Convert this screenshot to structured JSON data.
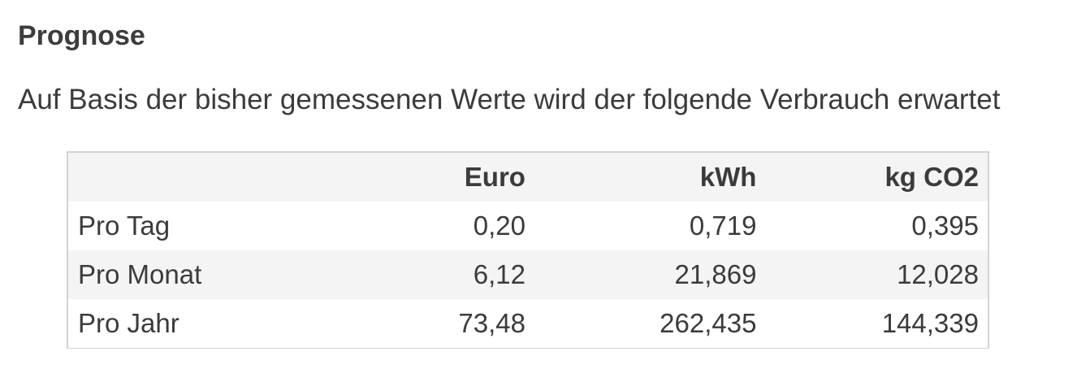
{
  "heading": "Prognose",
  "description": "Auf Basis der bisher gemessenen Werte wird der folgende Verbrauch erwartet",
  "table": {
    "columns": [
      "",
      "Euro",
      "kWh",
      "kg CO2"
    ],
    "rows": [
      {
        "label": "Pro Tag",
        "euro": "0,20",
        "kwh": "0,719",
        "co2": "0,395"
      },
      {
        "label": "Pro Monat",
        "euro": "6,12",
        "kwh": "21,869",
        "co2": "12,028"
      },
      {
        "label": "Pro Jahr",
        "euro": "73,48",
        "kwh": "262,435",
        "co2": "144,339"
      }
    ]
  }
}
